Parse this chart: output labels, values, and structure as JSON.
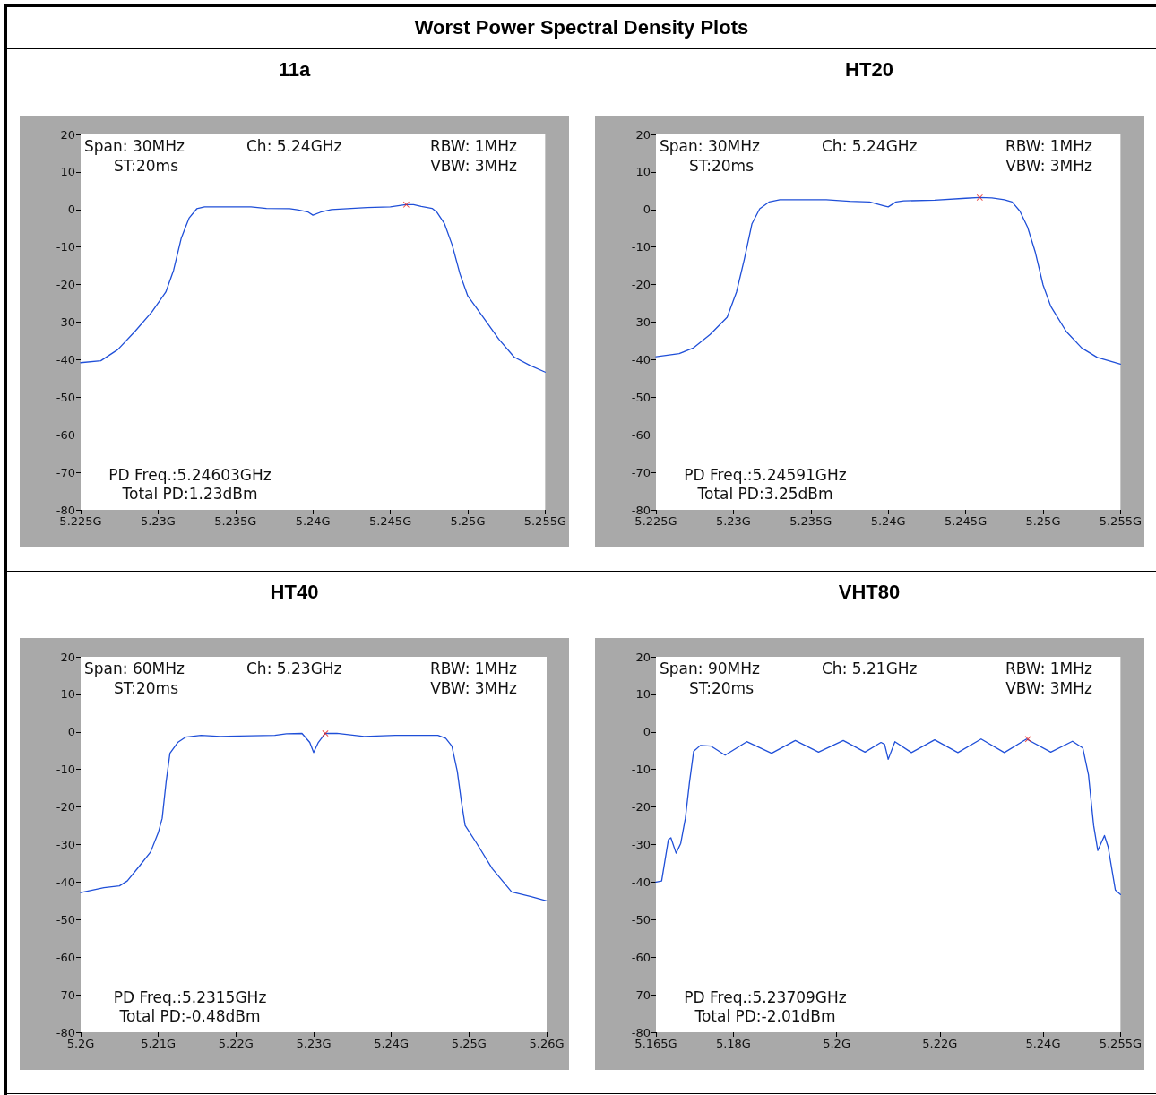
{
  "chart_data": [
    {
      "type": "line",
      "title": "Worst Power Spectral Density Plots",
      "subtitle": "11a",
      "annotations": [
        "Span: 30MHz",
        "Ch: 5.24GHz",
        "RBW: 1MHz",
        "ST:20ms",
        "VBW: 3MHz",
        "PD Freq.:5.24603GHz",
        "Total PD:1.23dBm"
      ],
      "xlim": [
        5.225,
        5.255
      ],
      "xticks": [
        {
          "value": 5.225,
          "label": "5.225G"
        },
        {
          "value": 5.23,
          "label": "5.23G"
        },
        {
          "value": 5.235,
          "label": "5.235G"
        },
        {
          "value": 5.24,
          "label": "5.24G"
        },
        {
          "value": 5.245,
          "label": "5.245G"
        },
        {
          "value": 5.25,
          "label": "5.25G"
        },
        {
          "value": 5.255,
          "label": "5.255G"
        }
      ],
      "ylim": [
        -80,
        20
      ],
      "yticks": [
        -80,
        -70,
        -60,
        -50,
        -40,
        -30,
        -20,
        -10,
        0,
        10,
        20
      ],
      "grid": false,
      "series": [
        {
          "color": "#1f4fd8",
          "marker": "none",
          "line_style": "solid",
          "x": [
            5.225,
            5.2263,
            5.2274,
            5.2285,
            5.2296,
            5.2305,
            5.231,
            5.2315,
            5.232,
            5.2325,
            5.233,
            5.236,
            5.237,
            5.2385,
            5.239,
            5.2397,
            5.24,
            5.2405,
            5.2412,
            5.2435,
            5.245,
            5.246,
            5.2465,
            5.247,
            5.2477,
            5.248,
            5.2485,
            5.249,
            5.2495,
            5.25,
            5.251,
            5.252,
            5.253,
            5.254,
            5.255
          ],
          "values": [
            -40.8,
            -40.3,
            -37.3,
            -32.5,
            -27.3,
            -22,
            -16.2,
            -7.6,
            -2.3,
            0.2,
            0.7,
            0.7,
            0.3,
            0.2,
            -0.1,
            -0.7,
            -1.5,
            -0.7,
            0,
            0.5,
            0.7,
            1.3,
            1.3,
            0.8,
            0.3,
            -0.7,
            -3.8,
            -9.5,
            -17.2,
            -23,
            -28.7,
            -34.5,
            -39.3,
            -41.5,
            -43.3
          ]
        },
        {
          "type": "scatter",
          "color": "#e8201c",
          "marker": "cross",
          "x": [
            5.24603
          ],
          "values": [
            1.3
          ]
        }
      ]
    },
    {
      "type": "line",
      "subtitle": "HT20",
      "annotations": [
        "Span: 30MHz",
        "Ch: 5.24GHz",
        "RBW: 1MHz",
        "ST:20ms",
        "VBW: 3MHz",
        "PD Freq.:5.24591GHz",
        "Total PD:3.25dBm"
      ],
      "xlim": [
        5.225,
        5.255
      ],
      "xticks": [
        {
          "value": 5.225,
          "label": "5.225G"
        },
        {
          "value": 5.23,
          "label": "5.23G"
        },
        {
          "value": 5.235,
          "label": "5.235G"
        },
        {
          "value": 5.24,
          "label": "5.24G"
        },
        {
          "value": 5.245,
          "label": "5.245G"
        },
        {
          "value": 5.25,
          "label": "5.25G"
        },
        {
          "value": 5.255,
          "label": "5.255G"
        }
      ],
      "ylim": [
        -80,
        20
      ],
      "yticks": [
        -80,
        -70,
        -60,
        -50,
        -40,
        -30,
        -20,
        -10,
        0,
        10,
        20
      ],
      "grid": false,
      "series": [
        {
          "color": "#1f4fd8",
          "marker": "none",
          "line_style": "solid",
          "x": [
            5.225,
            5.2265,
            5.2274,
            5.2285,
            5.2296,
            5.2302,
            5.2307,
            5.2312,
            5.2317,
            5.2323,
            5.233,
            5.236,
            5.2375,
            5.2388,
            5.2397,
            5.24,
            5.2405,
            5.241,
            5.243,
            5.245,
            5.2459,
            5.2467,
            5.2475,
            5.248,
            5.2485,
            5.249,
            5.2495,
            5.25,
            5.2505,
            5.2515,
            5.2525,
            5.2535,
            5.255
          ],
          "values": [
            -39.2,
            -38.4,
            -36.9,
            -33.3,
            -28.7,
            -22,
            -13.4,
            -3.8,
            0.2,
            2,
            2.6,
            2.6,
            2.2,
            2,
            1,
            0.7,
            2,
            2.3,
            2.5,
            3,
            3.2,
            3.1,
            2.6,
            2,
            -0.4,
            -4.7,
            -11.4,
            -20.1,
            -25.8,
            -32.5,
            -36.9,
            -39.4,
            -41.2
          ]
        },
        {
          "type": "scatter",
          "color": "#e8201c",
          "marker": "cross",
          "x": [
            5.24591
          ],
          "values": [
            3.2
          ]
        }
      ]
    },
    {
      "type": "line",
      "subtitle": "HT40",
      "annotations": [
        "Span: 60MHz",
        "Ch: 5.23GHz",
        "RBW: 1MHz",
        "ST:20ms",
        "VBW: 3MHz",
        "PD Freq.:5.2315GHz",
        "Total PD:-0.48dBm"
      ],
      "xlim": [
        5.2,
        5.26
      ],
      "xticks": [
        {
          "value": 5.2,
          "label": "5.2G"
        },
        {
          "value": 5.21,
          "label": "5.21G"
        },
        {
          "value": 5.22,
          "label": "5.22G"
        },
        {
          "value": 5.23,
          "label": "5.23G"
        },
        {
          "value": 5.24,
          "label": "5.24G"
        },
        {
          "value": 5.25,
          "label": "5.25G"
        },
        {
          "value": 5.26,
          "label": "5.26G"
        }
      ],
      "ylim": [
        -80,
        20
      ],
      "yticks": [
        -80,
        -70,
        -60,
        -50,
        -40,
        -30,
        -20,
        -10,
        0,
        10,
        20
      ],
      "grid": false,
      "series": [
        {
          "color": "#1f4fd8",
          "marker": "none",
          "line_style": "solid",
          "x": [
            5.2,
            5.203,
            5.205,
            5.206,
            5.2075,
            5.209,
            5.21,
            5.2105,
            5.211,
            5.2115,
            5.2125,
            5.2135,
            5.2155,
            5.218,
            5.225,
            5.2265,
            5.2285,
            5.2295,
            5.23,
            5.2306,
            5.2315,
            5.233,
            5.2365,
            5.2405,
            5.246,
            5.247,
            5.2478,
            5.2485,
            5.249,
            5.2495,
            5.251,
            5.253,
            5.2555,
            5.258,
            5.26
          ],
          "values": [
            -42.8,
            -41.5,
            -41,
            -39.7,
            -35.9,
            -32,
            -26.8,
            -23,
            -13.4,
            -5.7,
            -2.8,
            -1.4,
            -0.9,
            -1.2,
            -0.9,
            -0.5,
            -0.4,
            -2.8,
            -5.5,
            -2.8,
            -0.4,
            -0.4,
            -1.2,
            -0.9,
            -0.9,
            -1.7,
            -3.8,
            -10.5,
            -18.2,
            -24.9,
            -29.7,
            -36.4,
            -42.6,
            -43.9,
            -45
          ]
        },
        {
          "type": "scatter",
          "color": "#e8201c",
          "marker": "cross",
          "x": [
            5.2315
          ],
          "values": [
            -0.4
          ]
        }
      ]
    },
    {
      "type": "line",
      "subtitle": "VHT80",
      "annotations": [
        "Span: 90MHz",
        "Ch: 5.21GHz",
        "RBW: 1MHz",
        "ST:20ms",
        "VBW: 3MHz",
        "PD Freq.:5.23709GHz",
        "Total PD:-2.01dBm"
      ],
      "xlim": [
        5.165,
        5.255
      ],
      "xticks": [
        {
          "value": 5.165,
          "label": "5.165G"
        },
        {
          "value": 5.18,
          "label": "5.18G"
        },
        {
          "value": 5.2,
          "label": "5.2G"
        },
        {
          "value": 5.22,
          "label": "5.22G"
        },
        {
          "value": 5.24,
          "label": "5.24G"
        },
        {
          "value": 5.255,
          "label": "5.255G"
        }
      ],
      "ylim": [
        -80,
        20
      ],
      "yticks": [
        -80,
        -70,
        -60,
        -50,
        -40,
        -30,
        -20,
        -10,
        0,
        10,
        20
      ],
      "grid": false,
      "series": [
        {
          "color": "#1f4fd8",
          "marker": "none",
          "line_style": "solid",
          "x": [
            5.165,
            5.1661,
            5.1674,
            5.1679,
            5.1689,
            5.1698,
            5.1707,
            5.1715,
            5.1723,
            5.1736,
            5.1757,
            5.1784,
            5.1826,
            5.1874,
            5.192,
            5.1965,
            5.2013,
            5.2055,
            5.2086,
            5.2093,
            5.21,
            5.2113,
            5.2145,
            5.219,
            5.2235,
            5.228,
            5.2325,
            5.2368,
            5.2415,
            5.2457,
            5.2477,
            5.2488,
            5.2498,
            5.2506,
            5.2519,
            5.2526,
            5.254,
            5.255
          ],
          "values": [
            -40,
            -39.7,
            -28.7,
            -28.2,
            -32.3,
            -29.7,
            -23,
            -13.4,
            -5.2,
            -3.6,
            -3.8,
            -6.2,
            -2.6,
            -5.7,
            -2.3,
            -5.4,
            -2.3,
            -5.4,
            -2.8,
            -3.3,
            -7.3,
            -2.6,
            -5.5,
            -2.1,
            -5.5,
            -1.9,
            -5.5,
            -1.9,
            -5.4,
            -2.5,
            -4.3,
            -11.4,
            -24.9,
            -31.6,
            -27.6,
            -30.6,
            -42.1,
            -43.3
          ]
        },
        {
          "type": "scatter",
          "color": "#e8201c",
          "marker": "cross",
          "x": [
            5.23709
          ],
          "values": [
            -1.9
          ]
        }
      ]
    }
  ]
}
